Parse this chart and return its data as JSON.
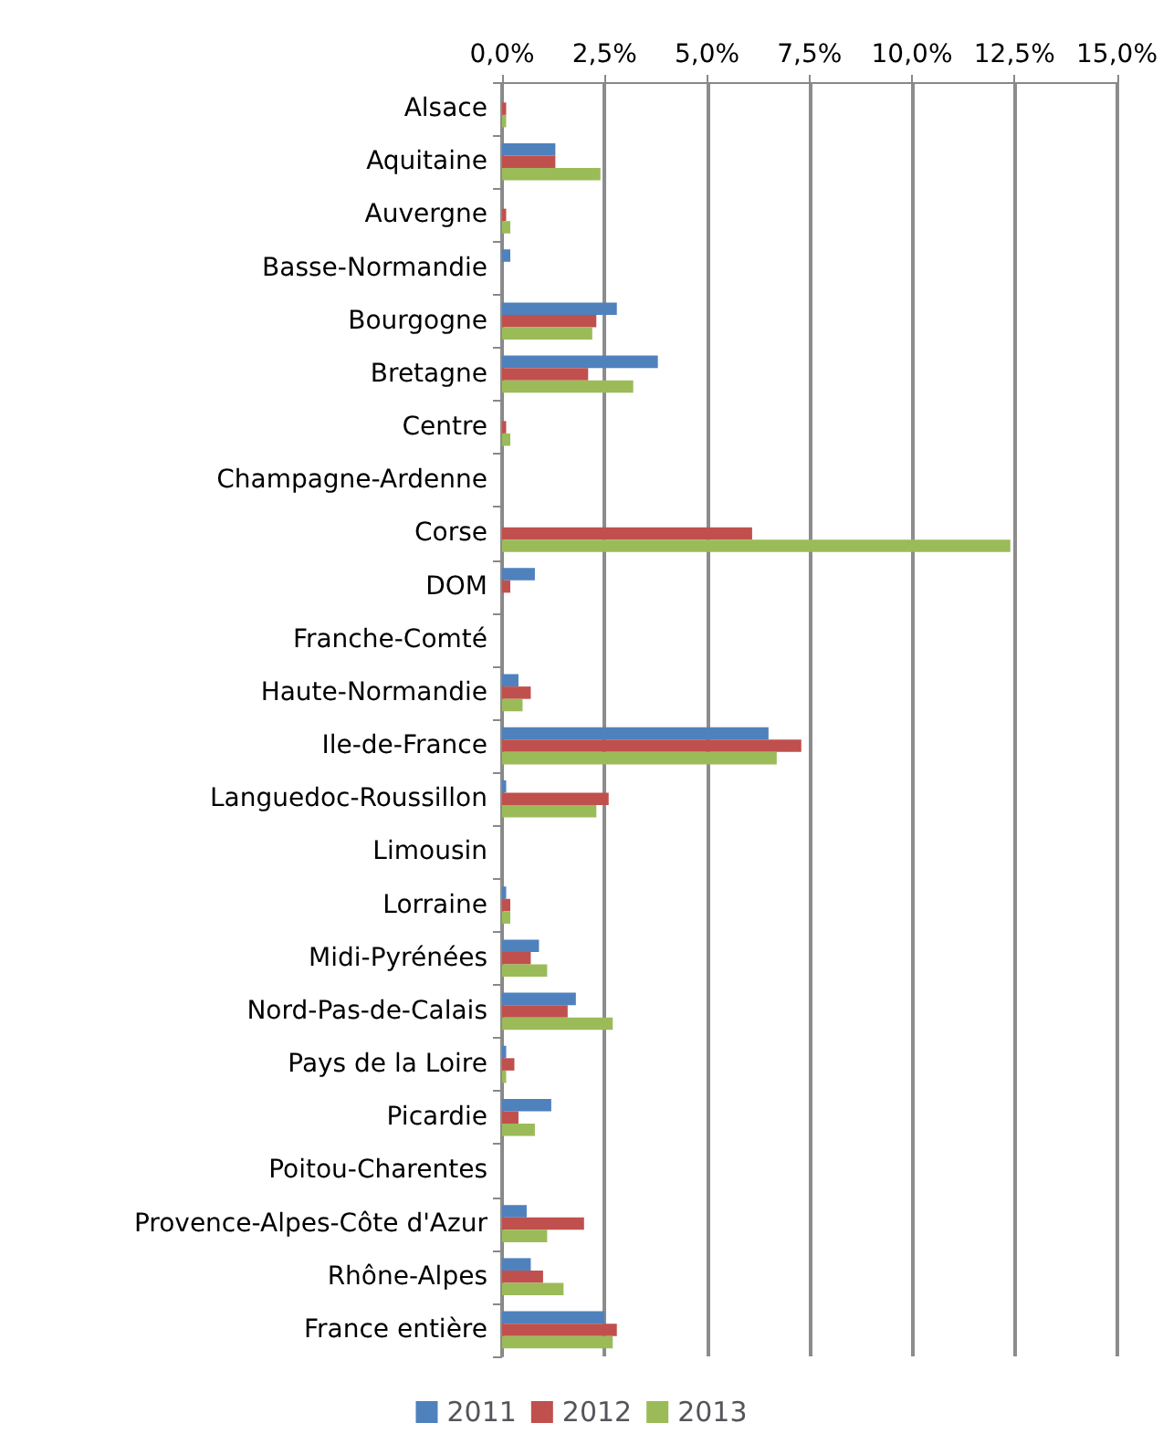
{
  "chart_data": {
    "type": "bar",
    "orientation": "horizontal",
    "categories": [
      "Alsace",
      "Aquitaine",
      "Auvergne",
      "Basse-Normandie",
      "Bourgogne",
      "Bretagne",
      "Centre",
      "Champagne-Ardenne",
      "Corse",
      "DOM",
      "Franche-Comté",
      "Haute-Normandie",
      "Ile-de-France",
      "Languedoc-Roussillon",
      "Limousin",
      "Lorraine",
      "Midi-Pyrénées",
      "Nord-Pas-de-Calais",
      "Pays de la Loire",
      "Picardie",
      "Poitou-Charentes",
      "Provence-Alpes-Côte d'Azur",
      "Rhône-Alpes",
      "France entière"
    ],
    "series": [
      {
        "name": "2011",
        "color": "#4f81bd",
        "values": [
          0,
          1.3,
          0,
          0.2,
          2.8,
          3.8,
          0,
          0,
          0,
          0.8,
          0,
          0.4,
          6.5,
          0.1,
          0,
          0.1,
          0.9,
          1.8,
          0.1,
          1.2,
          0,
          0.6,
          0.7,
          2.5
        ]
      },
      {
        "name": "2012",
        "color": "#c0504d",
        "values": [
          0.1,
          1.3,
          0.1,
          0,
          2.3,
          2.1,
          0.1,
          0,
          6.1,
          0.2,
          0,
          0.7,
          7.3,
          2.6,
          0,
          0.2,
          0.7,
          1.6,
          0.3,
          0.4,
          0,
          2.0,
          1.0,
          2.8
        ]
      },
      {
        "name": "2013",
        "color": "#9bbb59",
        "values": [
          0.1,
          2.4,
          0.2,
          0,
          2.2,
          3.2,
          0.2,
          0,
          12.4,
          0,
          0,
          0.5,
          6.7,
          2.3,
          0,
          0.2,
          1.1,
          2.7,
          0.1,
          0.8,
          0,
          1.1,
          1.5,
          2.7
        ]
      }
    ],
    "xlim": [
      0,
      15
    ],
    "xticks": [
      {
        "value": 0,
        "label": "0,0%"
      },
      {
        "value": 2.5,
        "label": "2,5%"
      },
      {
        "value": 5,
        "label": "5,0%"
      },
      {
        "value": 7.5,
        "label": "7,5%"
      },
      {
        "value": 10,
        "label": "10,0%"
      },
      {
        "value": 12.5,
        "label": "12,5%"
      },
      {
        "value": 15,
        "label": "15,0%"
      }
    ],
    "grid": "x",
    "legend": "bottom"
  }
}
